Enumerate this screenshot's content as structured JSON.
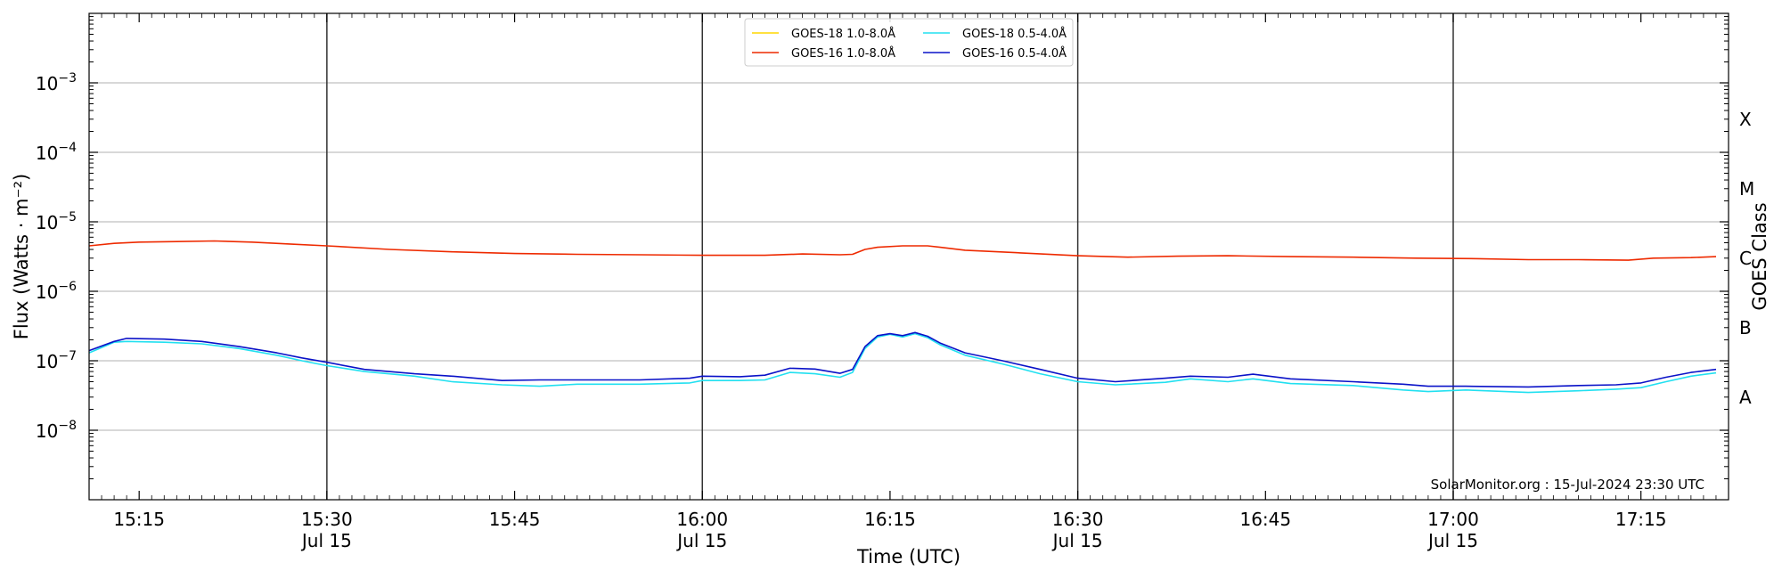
{
  "chart_data": {
    "type": "line",
    "xlabel": "Time (UTC)",
    "ylabel": "Flux (Watts · m⁻²)",
    "y2label": "GOES Class",
    "yscale": "log",
    "ylim": [
      1e-09,
      0.01
    ],
    "xlim": [
      "15:11",
      "17:22"
    ],
    "grid": "horizontal at decades",
    "legend_position": "top-center",
    "credit": "SolarMonitor.org : 15-Jul-2024 23:30 UTC",
    "x_ticks": [
      {
        "t": "15:15",
        "label": "15:15",
        "date": ""
      },
      {
        "t": "15:30",
        "label": "15:30",
        "date": "Jul 15"
      },
      {
        "t": "15:45",
        "label": "15:45",
        "date": ""
      },
      {
        "t": "16:00",
        "label": "16:00",
        "date": "Jul 15"
      },
      {
        "t": "16:15",
        "label": "16:15",
        "date": ""
      },
      {
        "t": "16:30",
        "label": "16:30",
        "date": "Jul 15"
      },
      {
        "t": "16:45",
        "label": "16:45",
        "date": ""
      },
      {
        "t": "17:00",
        "label": "17:00",
        "date": "Jul 15"
      },
      {
        "t": "17:15",
        "label": "17:15",
        "date": ""
      }
    ],
    "vlines": [
      "15:30",
      "16:00",
      "16:30",
      "17:00"
    ],
    "y_ticks": [
      {
        "exp": -8,
        "label": "10",
        "sup": "−8"
      },
      {
        "exp": -7,
        "label": "10",
        "sup": "−7"
      },
      {
        "exp": -6,
        "label": "10",
        "sup": "−6"
      },
      {
        "exp": -5,
        "label": "10",
        "sup": "−5"
      },
      {
        "exp": -4,
        "label": "10",
        "sup": "−4"
      },
      {
        "exp": -3,
        "label": "10",
        "sup": "−3"
      }
    ],
    "goes_classes": [
      {
        "label": "A",
        "value": 3e-08
      },
      {
        "label": "B",
        "value": 3e-07
      },
      {
        "label": "C",
        "value": 3e-06
      },
      {
        "label": "M",
        "value": 3e-05
      },
      {
        "label": "X",
        "value": 0.0003
      }
    ],
    "series": [
      {
        "name": "GOES-18 1.0-8.0Å",
        "color": "#ffd700",
        "points": []
      },
      {
        "name": "GOES-16 1.0-8.0Å",
        "color": "#ee2a00",
        "points": [
          [
            "15:11",
            4.5e-06
          ],
          [
            "15:13",
            4.9e-06
          ],
          [
            "15:15",
            5.1e-06
          ],
          [
            "15:18",
            5.2e-06
          ],
          [
            "15:21",
            5.3e-06
          ],
          [
            "15:24",
            5.1e-06
          ],
          [
            "15:27",
            4.8e-06
          ],
          [
            "15:30",
            4.5e-06
          ],
          [
            "15:35",
            4e-06
          ],
          [
            "15:40",
            3.7e-06
          ],
          [
            "15:45",
            3.5e-06
          ],
          [
            "15:50",
            3.4e-06
          ],
          [
            "15:55",
            3.35e-06
          ],
          [
            "16:00",
            3.3e-06
          ],
          [
            "16:05",
            3.3e-06
          ],
          [
            "16:08",
            3.45e-06
          ],
          [
            "16:11",
            3.35e-06
          ],
          [
            "16:12",
            3.4e-06
          ],
          [
            "16:13",
            4e-06
          ],
          [
            "16:14",
            4.3e-06
          ],
          [
            "16:16",
            4.5e-06
          ],
          [
            "16:18",
            4.5e-06
          ],
          [
            "16:19",
            4.3e-06
          ],
          [
            "16:21",
            3.9e-06
          ],
          [
            "16:25",
            3.6e-06
          ],
          [
            "16:30",
            3.25e-06
          ],
          [
            "16:34",
            3.1e-06
          ],
          [
            "16:38",
            3.2e-06
          ],
          [
            "16:42",
            3.25e-06
          ],
          [
            "16:47",
            3.15e-06
          ],
          [
            "16:52",
            3.1e-06
          ],
          [
            "16:57",
            3e-06
          ],
          [
            "17:02",
            2.95e-06
          ],
          [
            "17:06",
            2.85e-06
          ],
          [
            "17:10",
            2.85e-06
          ],
          [
            "17:14",
            2.8e-06
          ],
          [
            "17:16",
            3e-06
          ],
          [
            "17:19",
            3.05e-06
          ],
          [
            "17:21",
            3.15e-06
          ]
        ]
      },
      {
        "name": "GOES-18 0.5-4.0Å",
        "color": "#22e0f0",
        "points": [
          [
            "15:11",
            1.3e-07
          ],
          [
            "15:13",
            1.85e-07
          ],
          [
            "15:14",
            1.9e-07
          ],
          [
            "15:17",
            1.85e-07
          ],
          [
            "15:20",
            1.75e-07
          ],
          [
            "15:23",
            1.5e-07
          ],
          [
            "15:26",
            1.2e-07
          ],
          [
            "15:28",
            1e-07
          ],
          [
            "15:30",
            8.5e-08
          ],
          [
            "15:33",
            7e-08
          ],
          [
            "15:37",
            6e-08
          ],
          [
            "15:40",
            5e-08
          ],
          [
            "15:44",
            4.5e-08
          ],
          [
            "15:47",
            4.3e-08
          ],
          [
            "15:50",
            4.6e-08
          ],
          [
            "15:55",
            4.6e-08
          ],
          [
            "15:59",
            4.8e-08
          ],
          [
            "16:00",
            5.2e-08
          ],
          [
            "16:03",
            5.2e-08
          ],
          [
            "16:05",
            5.3e-08
          ],
          [
            "16:07",
            6.8e-08
          ],
          [
            "16:09",
            6.5e-08
          ],
          [
            "16:11",
            5.8e-08
          ],
          [
            "16:12",
            6.8e-08
          ],
          [
            "16:13",
            1.5e-07
          ],
          [
            "16:14",
            2.2e-07
          ],
          [
            "16:15",
            2.4e-07
          ],
          [
            "16:16",
            2.2e-07
          ],
          [
            "16:17",
            2.45e-07
          ],
          [
            "16:18",
            2.15e-07
          ],
          [
            "16:19",
            1.7e-07
          ],
          [
            "16:21",
            1.2e-07
          ],
          [
            "16:24",
            9e-08
          ],
          [
            "16:27",
            6.5e-08
          ],
          [
            "16:30",
            5e-08
          ],
          [
            "16:33",
            4.5e-08
          ],
          [
            "16:37",
            4.9e-08
          ],
          [
            "16:39",
            5.5e-08
          ],
          [
            "16:42",
            5e-08
          ],
          [
            "16:44",
            5.5e-08
          ],
          [
            "16:47",
            4.7e-08
          ],
          [
            "16:52",
            4.4e-08
          ],
          [
            "16:56",
            3.8e-08
          ],
          [
            "16:58",
            3.6e-08
          ],
          [
            "17:01",
            3.8e-08
          ],
          [
            "17:06",
            3.5e-08
          ],
          [
            "17:10",
            3.7e-08
          ],
          [
            "17:13",
            3.9e-08
          ],
          [
            "17:15",
            4.1e-08
          ],
          [
            "17:17",
            5e-08
          ],
          [
            "17:19",
            6e-08
          ],
          [
            "17:21",
            6.7e-08
          ]
        ]
      },
      {
        "name": "GOES-16 0.5-4.0Å",
        "color": "#0a12c8",
        "points": [
          [
            "15:11",
            1.4e-07
          ],
          [
            "15:13",
            1.9e-07
          ],
          [
            "15:14",
            2.1e-07
          ],
          [
            "15:17",
            2.05e-07
          ],
          [
            "15:20",
            1.9e-07
          ],
          [
            "15:23",
            1.6e-07
          ],
          [
            "15:26",
            1.3e-07
          ],
          [
            "15:28",
            1.1e-07
          ],
          [
            "15:30",
            9.5e-08
          ],
          [
            "15:33",
            7.5e-08
          ],
          [
            "15:37",
            6.5e-08
          ],
          [
            "15:40",
            6e-08
          ],
          [
            "15:44",
            5.2e-08
          ],
          [
            "15:47",
            5.3e-08
          ],
          [
            "15:50",
            5.3e-08
          ],
          [
            "15:55",
            5.3e-08
          ],
          [
            "15:59",
            5.6e-08
          ],
          [
            "16:00",
            6e-08
          ],
          [
            "16:03",
            5.9e-08
          ],
          [
            "16:05",
            6.2e-08
          ],
          [
            "16:07",
            7.8e-08
          ],
          [
            "16:09",
            7.6e-08
          ],
          [
            "16:11",
            6.6e-08
          ],
          [
            "16:12",
            7.5e-08
          ],
          [
            "16:13",
            1.6e-07
          ],
          [
            "16:14",
            2.3e-07
          ],
          [
            "16:15",
            2.45e-07
          ],
          [
            "16:16",
            2.3e-07
          ],
          [
            "16:17",
            2.55e-07
          ],
          [
            "16:18",
            2.25e-07
          ],
          [
            "16:19",
            1.8e-07
          ],
          [
            "16:21",
            1.3e-07
          ],
          [
            "16:24",
            1e-07
          ],
          [
            "16:27",
            7.5e-08
          ],
          [
            "16:30",
            5.6e-08
          ],
          [
            "16:33",
            5e-08
          ],
          [
            "16:37",
            5.6e-08
          ],
          [
            "16:39",
            6e-08
          ],
          [
            "16:42",
            5.8e-08
          ],
          [
            "16:44",
            6.4e-08
          ],
          [
            "16:47",
            5.5e-08
          ],
          [
            "16:52",
            5e-08
          ],
          [
            "16:56",
            4.6e-08
          ],
          [
            "16:58",
            4.3e-08
          ],
          [
            "17:01",
            4.3e-08
          ],
          [
            "17:06",
            4.2e-08
          ],
          [
            "17:10",
            4.4e-08
          ],
          [
            "17:13",
            4.5e-08
          ],
          [
            "17:15",
            4.8e-08
          ],
          [
            "17:17",
            5.8e-08
          ],
          [
            "17:19",
            6.8e-08
          ],
          [
            "17:21",
            7.5e-08
          ]
        ]
      }
    ]
  }
}
